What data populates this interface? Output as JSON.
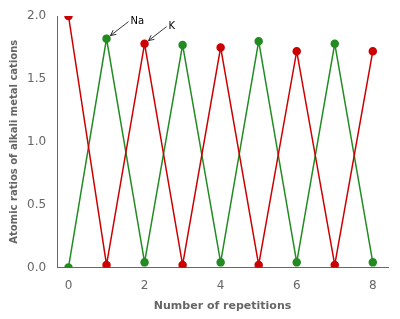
{
  "chart_data": {
    "type": "line",
    "x_label": "Number of repetitions",
    "y_label": "Atomic ratios of alkali metal cations",
    "x": [
      0,
      1,
      2,
      3,
      4,
      5,
      6,
      7,
      8
    ],
    "series": [
      {
        "color": "#cc0000",
        "values": [
          2.0,
          0.02,
          1.78,
          0.02,
          1.75,
          0.02,
          1.72,
          0.02,
          1.72
        ]
      },
      {
        "color": "#228B22",
        "values": [
          0.0,
          1.82,
          0.04,
          1.77,
          0.04,
          1.8,
          0.04,
          1.78,
          0.04
        ]
      }
    ],
    "marker": "circle",
    "line_style": "solid",
    "xlim": [
      -0.3,
      8.4
    ],
    "ylim": [
      0.0,
      2.0
    ],
    "xticks": [
      0,
      2,
      4,
      6,
      8
    ],
    "yticks": [
      {
        "value": 0.0,
        "label": "0.0"
      },
      0.5,
      {
        "value": 1.0,
        "label": "1.0"
      },
      1.5,
      {
        "value": 2.0,
        "label": "2.0"
      }
    ],
    "grid": false,
    "annotations": [
      {
        "text": "Na",
        "x": 1,
        "y": 1.82
      },
      {
        "text": "K",
        "x": 2,
        "y": 1.78
      }
    ]
  }
}
